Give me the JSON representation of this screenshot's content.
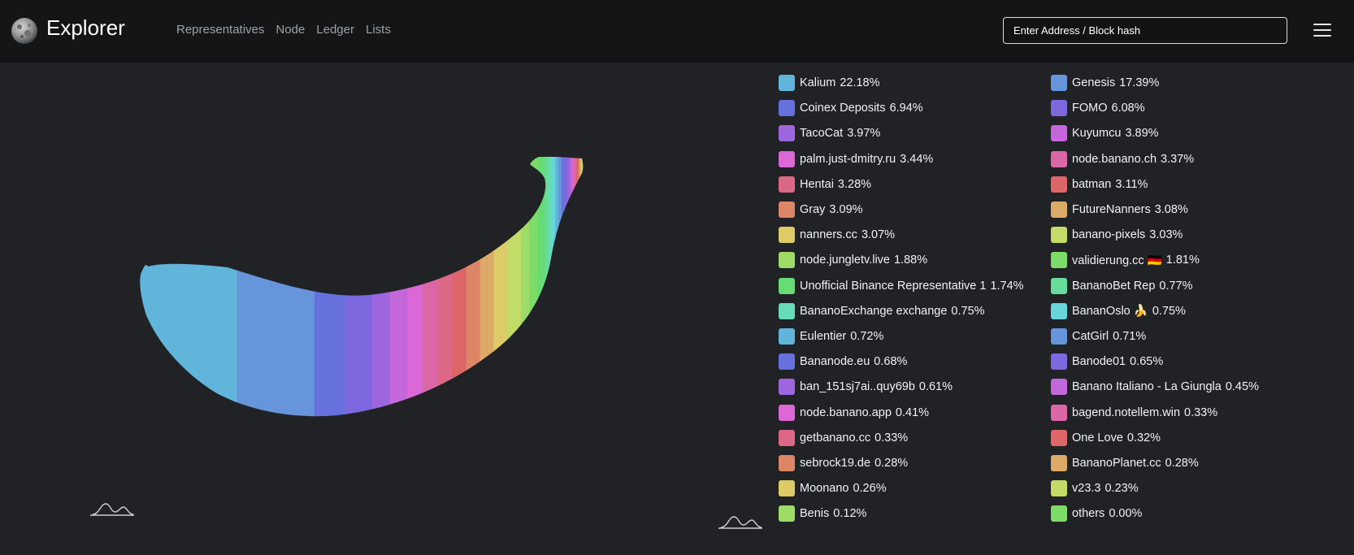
{
  "navbar": {
    "brand": "Explorer",
    "logo_icon": "moon-icon",
    "links": [
      "Representatives",
      "Node",
      "Ledger",
      "Lists"
    ],
    "search_placeholder": "Enter Address / Block hash",
    "menu_icon": "hamburger-menu-icon"
  },
  "chart_data": {
    "type": "pie",
    "series": [
      {
        "name": "Kalium",
        "label": "22.18%",
        "value": 22.18,
        "color": "#62b5da"
      },
      {
        "name": "Genesis",
        "label": "17.39%",
        "value": 17.39,
        "color": "#6795db"
      },
      {
        "name": "Coinex Deposits",
        "label": "6.94%",
        "value": 6.94,
        "color": "#6771de"
      },
      {
        "name": "FOMO",
        "label": "6.08%",
        "value": 6.08,
        "color": "#7d68df"
      },
      {
        "name": "TacoCat",
        "label": "3.97%",
        "value": 3.97,
        "color": "#9e66de"
      },
      {
        "name": "Kuyumcu",
        "label": "3.89%",
        "value": 3.89,
        "color": "#c467db"
      },
      {
        "name": "palm.just-dmitry.ru",
        "label": "3.44%",
        "value": 3.44,
        "color": "#dc67d6"
      },
      {
        "name": "node.banano.ch",
        "label": "3.37%",
        "value": 3.37,
        "color": "#dc67a6"
      },
      {
        "name": "Hentai",
        "label": "3.28%",
        "value": 3.28,
        "color": "#dc6786"
      },
      {
        "name": "batman",
        "label": "3.11%",
        "value": 3.11,
        "color": "#dc6668"
      },
      {
        "name": "Gray",
        "label": "3.09%",
        "value": 3.09,
        "color": "#dc8567"
      },
      {
        "name": "FutureNanners",
        "label": "3.08%",
        "value": 3.08,
        "color": "#dcaa67"
      },
      {
        "name": "nanners.cc",
        "label": "3.07%",
        "value": 3.07,
        "color": "#dccb67"
      },
      {
        "name": "banano-pixels",
        "label": "3.03%",
        "value": 3.03,
        "color": "#c2dc67"
      },
      {
        "name": "node.jungletv.live",
        "label": "1.88%",
        "value": 1.88,
        "color": "#9edc67"
      },
      {
        "name": "validierung.cc 🇩🇪",
        "label": "1.81%",
        "value": 1.81,
        "color": "#7cdc67"
      },
      {
        "name": "Unofficial Binance Representative 1",
        "label": "1.74%",
        "value": 1.74,
        "color": "#67dc74"
      },
      {
        "name": "BananoBet Rep",
        "label": "0.77%",
        "value": 0.77,
        "color": "#67dc9a"
      },
      {
        "name": "BananoExchange exchange",
        "label": "0.75%",
        "value": 0.75,
        "color": "#67dcba"
      },
      {
        "name": "BananOslo 🍌",
        "label": "0.75%",
        "value": 0.75,
        "color": "#67d6dc"
      },
      {
        "name": "Eulentier",
        "label": "0.72%",
        "value": 0.72,
        "color": "#62b5da"
      },
      {
        "name": "CatGirl",
        "label": "0.71%",
        "value": 0.71,
        "color": "#6795db"
      },
      {
        "name": "Bananode.eu",
        "label": "0.68%",
        "value": 0.68,
        "color": "#6771de"
      },
      {
        "name": "Banode01",
        "label": "0.65%",
        "value": 0.65,
        "color": "#7d68df"
      },
      {
        "name": "ban_151sj7ai..quy69b",
        "label": "0.61%",
        "value": 0.61,
        "color": "#9e66de"
      },
      {
        "name": "Banano Italiano - La Giungla",
        "label": "0.45%",
        "value": 0.45,
        "color": "#c467db"
      },
      {
        "name": "node.banano.app",
        "label": "0.41%",
        "value": 0.41,
        "color": "#dc67d6"
      },
      {
        "name": "bagend.notellem.win",
        "label": "0.33%",
        "value": 0.33,
        "color": "#dc67a6"
      },
      {
        "name": "getbanano.cc",
        "label": "0.33%",
        "value": 0.33,
        "color": "#dc6786"
      },
      {
        "name": "One Love",
        "label": "0.32%",
        "value": 0.32,
        "color": "#dc6668"
      },
      {
        "name": "sebrock19.de",
        "label": "0.28%",
        "value": 0.28,
        "color": "#dc8567"
      },
      {
        "name": "BananoPlanet.cc",
        "label": "0.28%",
        "value": 0.28,
        "color": "#dcaa67"
      },
      {
        "name": "Moonano",
        "label": "0.26%",
        "value": 0.26,
        "color": "#dccb67"
      },
      {
        "name": "v23.3",
        "label": "0.23%",
        "value": 0.23,
        "color": "#c2dc67"
      },
      {
        "name": "Benis",
        "label": "0.12%",
        "value": 0.12,
        "color": "#9edc67"
      },
      {
        "name": "others",
        "label": "0.00%",
        "value": 0.0,
        "color": "#7cdc67"
      }
    ]
  }
}
